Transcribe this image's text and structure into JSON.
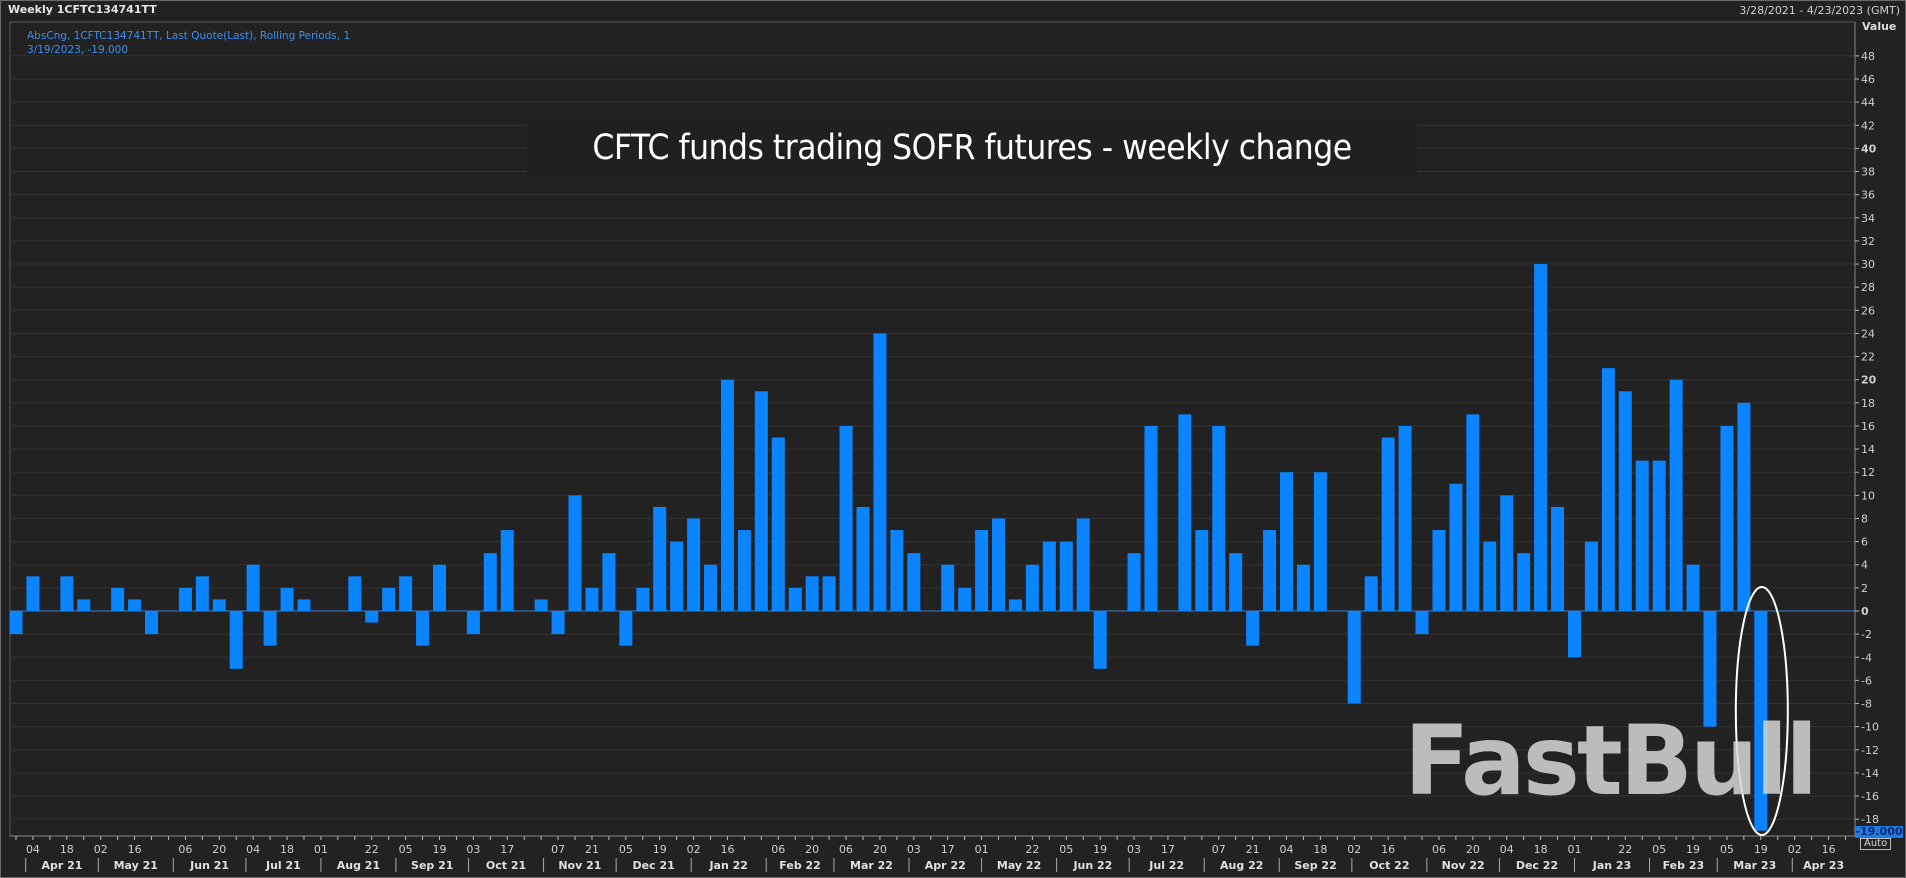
{
  "header": {
    "title": "Weekly 1CFTC134741TT",
    "date_range": "3/28/2021 - 4/23/2023 (GMT)"
  },
  "legend": {
    "line1": "AbsCng, 1CFTC134741TT, Last Quote(Last), Rolling Periods, 1",
    "line2": "3/19/2023, -19.000"
  },
  "watermark": "FastBull",
  "y_axis": {
    "label": "Value",
    "current_value": "-19.000",
    "scale_mode": "Auto"
  },
  "colors": {
    "bar": "#0a84ff",
    "background": "#222222",
    "grid": "#333333",
    "annotation": "#ffffff"
  },
  "chart_data": {
    "type": "bar",
    "title": "CFTC funds trading SOFR futures - weekly change",
    "ylabel": "Value",
    "ylim": [
      -19,
      50
    ],
    "yticks": [
      -18,
      -16,
      -14,
      -12,
      -10,
      -8,
      -6,
      -4,
      -2,
      0,
      2,
      4,
      6,
      8,
      10,
      12,
      14,
      16,
      18,
      20,
      22,
      24,
      26,
      28,
      30,
      32,
      34,
      36,
      38,
      40,
      42,
      44,
      46,
      48
    ],
    "ybold": [
      0,
      20,
      40
    ],
    "grid": true,
    "xlim": [
      "2021-03-28",
      "2023-04-23"
    ],
    "x": [
      "2021-03-28",
      "2021-04-04",
      "2021-04-11",
      "2021-04-18",
      "2021-04-25",
      "2021-05-02",
      "2021-05-09",
      "2021-05-16",
      "2021-05-23",
      "2021-05-30",
      "2021-06-06",
      "2021-06-13",
      "2021-06-20",
      "2021-06-27",
      "2021-07-04",
      "2021-07-11",
      "2021-07-18",
      "2021-07-25",
      "2021-08-01",
      "2021-08-08",
      "2021-08-15",
      "2021-08-22",
      "2021-08-29",
      "2021-09-05",
      "2021-09-12",
      "2021-09-19",
      "2021-09-26",
      "2021-10-03",
      "2021-10-10",
      "2021-10-17",
      "2021-10-24",
      "2021-10-31",
      "2021-11-07",
      "2021-11-14",
      "2021-11-21",
      "2021-11-28",
      "2021-12-05",
      "2021-12-12",
      "2021-12-19",
      "2021-12-26",
      "2022-01-02",
      "2022-01-09",
      "2022-01-16",
      "2022-01-23",
      "2022-01-30",
      "2022-02-06",
      "2022-02-13",
      "2022-02-20",
      "2022-02-27",
      "2022-03-06",
      "2022-03-13",
      "2022-03-20",
      "2022-03-27",
      "2022-04-03",
      "2022-04-10",
      "2022-04-17",
      "2022-04-24",
      "2022-05-01",
      "2022-05-08",
      "2022-05-15",
      "2022-05-22",
      "2022-05-29",
      "2022-06-05",
      "2022-06-12",
      "2022-06-19",
      "2022-06-26",
      "2022-07-03",
      "2022-07-10",
      "2022-07-17",
      "2022-07-24",
      "2022-07-31",
      "2022-08-07",
      "2022-08-14",
      "2022-08-21",
      "2022-08-28",
      "2022-09-04",
      "2022-09-11",
      "2022-09-18",
      "2022-09-25",
      "2022-10-02",
      "2022-10-09",
      "2022-10-16",
      "2022-10-23",
      "2022-10-30",
      "2022-11-06",
      "2022-11-13",
      "2022-11-20",
      "2022-11-27",
      "2022-12-04",
      "2022-12-11",
      "2022-12-18",
      "2022-12-25",
      "2023-01-01",
      "2023-01-08",
      "2023-01-15",
      "2023-01-22",
      "2023-01-29",
      "2023-02-05",
      "2023-02-12",
      "2023-02-19",
      "2023-02-26",
      "2023-03-05",
      "2023-03-12",
      "2023-03-19"
    ],
    "values": [
      -2,
      3,
      0,
      3,
      1,
      0,
      2,
      1,
      -2,
      0,
      2,
      3,
      1,
      -5,
      4,
      -3,
      2,
      1,
      0,
      0,
      3,
      -1,
      2,
      3,
      -3,
      4,
      0,
      -2,
      5,
      7,
      0,
      1,
      -2,
      10,
      2,
      5,
      -3,
      2,
      9,
      6,
      8,
      4,
      20,
      7,
      19,
      15,
      2,
      3,
      3,
      16,
      9,
      24,
      7,
      5,
      0,
      4,
      2,
      7,
      8,
      1,
      4,
      6,
      6,
      8,
      -5,
      0,
      5,
      16,
      0,
      17,
      7,
      16,
      5,
      -3,
      7,
      12,
      4,
      12,
      0,
      -8,
      3,
      15,
      16,
      -2,
      7,
      11,
      17,
      6,
      10,
      5,
      30,
      9,
      -4,
      6,
      21,
      19,
      13,
      13,
      20,
      4,
      -10,
      16,
      18,
      -19
    ],
    "x_tick_labels": [
      {
        "date": "2021-04-04",
        "label": "04"
      },
      {
        "date": "2021-04-18",
        "label": "18"
      },
      {
        "date": "2021-05-02",
        "label": "02"
      },
      {
        "date": "2021-05-16",
        "label": "16"
      },
      {
        "date": "2021-06-06",
        "label": "06"
      },
      {
        "date": "2021-06-20",
        "label": "20"
      },
      {
        "date": "2021-07-04",
        "label": "04"
      },
      {
        "date": "2021-07-18",
        "label": "18"
      },
      {
        "date": "2021-08-01",
        "label": "01"
      },
      {
        "date": "2021-08-22",
        "label": "22"
      },
      {
        "date": "2021-09-05",
        "label": "05"
      },
      {
        "date": "2021-09-19",
        "label": "19"
      },
      {
        "date": "2021-10-03",
        "label": "03"
      },
      {
        "date": "2021-10-17",
        "label": "17"
      },
      {
        "date": "2021-11-07",
        "label": "07"
      },
      {
        "date": "2021-11-21",
        "label": "21"
      },
      {
        "date": "2021-12-05",
        "label": "05"
      },
      {
        "date": "2021-12-19",
        "label": "19"
      },
      {
        "date": "2022-01-02",
        "label": "02"
      },
      {
        "date": "2022-01-16",
        "label": "16"
      },
      {
        "date": "2022-02-06",
        "label": "06"
      },
      {
        "date": "2022-02-20",
        "label": "20"
      },
      {
        "date": "2022-03-06",
        "label": "06"
      },
      {
        "date": "2022-03-20",
        "label": "20"
      },
      {
        "date": "2022-04-03",
        "label": "03"
      },
      {
        "date": "2022-04-17",
        "label": "17"
      },
      {
        "date": "2022-05-01",
        "label": "01"
      },
      {
        "date": "2022-05-22",
        "label": "22"
      },
      {
        "date": "2022-06-05",
        "label": "05"
      },
      {
        "date": "2022-06-19",
        "label": "19"
      },
      {
        "date": "2022-07-03",
        "label": "03"
      },
      {
        "date": "2022-07-17",
        "label": "17"
      },
      {
        "date": "2022-08-07",
        "label": "07"
      },
      {
        "date": "2022-08-21",
        "label": "21"
      },
      {
        "date": "2022-09-04",
        "label": "04"
      },
      {
        "date": "2022-09-18",
        "label": "18"
      },
      {
        "date": "2022-10-02",
        "label": "02"
      },
      {
        "date": "2022-10-16",
        "label": "16"
      },
      {
        "date": "2022-11-06",
        "label": "06"
      },
      {
        "date": "2022-11-20",
        "label": "20"
      },
      {
        "date": "2022-12-04",
        "label": "04"
      },
      {
        "date": "2022-12-18",
        "label": "18"
      },
      {
        "date": "2023-01-01",
        "label": "01"
      },
      {
        "date": "2023-01-22",
        "label": "22"
      },
      {
        "date": "2023-02-05",
        "label": "05"
      },
      {
        "date": "2023-02-19",
        "label": "19"
      },
      {
        "date": "2023-03-05",
        "label": "05"
      },
      {
        "date": "2023-03-19",
        "label": "19"
      },
      {
        "date": "2023-04-02",
        "label": "02"
      },
      {
        "date": "2023-04-16",
        "label": "16"
      }
    ],
    "x_month_labels": [
      {
        "month": "2021-04",
        "label": "Apr 21"
      },
      {
        "month": "2021-05",
        "label": "May 21"
      },
      {
        "month": "2021-06",
        "label": "Jun 21"
      },
      {
        "month": "2021-07",
        "label": "Jul 21"
      },
      {
        "month": "2021-08",
        "label": "Aug 21"
      },
      {
        "month": "2021-09",
        "label": "Sep 21"
      },
      {
        "month": "2021-10",
        "label": "Oct 21"
      },
      {
        "month": "2021-11",
        "label": "Nov 21"
      },
      {
        "month": "2021-12",
        "label": "Dec 21"
      },
      {
        "month": "2022-01",
        "label": "Jan 22"
      },
      {
        "month": "2022-02",
        "label": "Feb 22"
      },
      {
        "month": "2022-03",
        "label": "Mar 22"
      },
      {
        "month": "2022-04",
        "label": "Apr 22"
      },
      {
        "month": "2022-05",
        "label": "May 22"
      },
      {
        "month": "2022-06",
        "label": "Jun 22"
      },
      {
        "month": "2022-07",
        "label": "Jul 22"
      },
      {
        "month": "2022-08",
        "label": "Aug 22"
      },
      {
        "month": "2022-09",
        "label": "Sep 22"
      },
      {
        "month": "2022-10",
        "label": "Oct 22"
      },
      {
        "month": "2022-11",
        "label": "Nov 22"
      },
      {
        "month": "2022-12",
        "label": "Dec 22"
      },
      {
        "month": "2023-01",
        "label": "Jan 23"
      },
      {
        "month": "2023-02",
        "label": "Feb 23"
      },
      {
        "month": "2023-03",
        "label": "Mar 23"
      },
      {
        "month": "2023-04",
        "label": "Apr 23"
      }
    ],
    "annotation": {
      "type": "ellipse",
      "highlights": "2023-03-19"
    }
  }
}
